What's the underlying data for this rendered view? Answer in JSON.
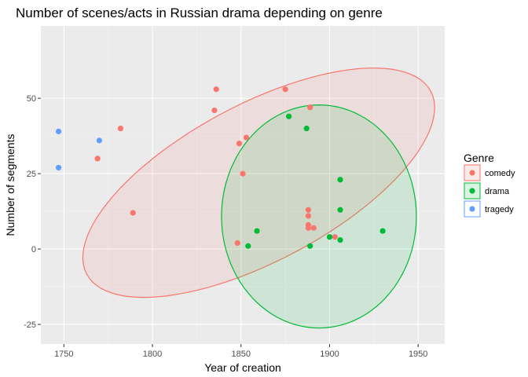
{
  "chart_data": {
    "type": "scatter",
    "title": "Number of scenes/acts in Russian drama depending on genre",
    "xlabel": "Year of creation",
    "ylabel": "Number of segments",
    "xlim": [
      1737,
      1965
    ],
    "ylim": [
      -31.5,
      74
    ],
    "xticks": [
      1750,
      1800,
      1850,
      1900,
      1950
    ],
    "yticks": [
      -25,
      0,
      25,
      50
    ],
    "grid": true,
    "legend": {
      "title": "Genre",
      "placement": "right"
    },
    "series": [
      {
        "name": "comedy",
        "color": "#F8766D",
        "points": [
          [
            1769,
            30
          ],
          [
            1782,
            40
          ],
          [
            1789,
            12
          ],
          [
            1835,
            46
          ],
          [
            1836,
            53
          ],
          [
            1848,
            2
          ],
          [
            1849,
            35
          ],
          [
            1851,
            25
          ],
          [
            1853,
            37
          ],
          [
            1875,
            53
          ],
          [
            1888,
            13
          ],
          [
            1888,
            11
          ],
          [
            1888,
            8
          ],
          [
            1888,
            7
          ],
          [
            1889,
            47
          ],
          [
            1891,
            7
          ],
          [
            1903,
            4
          ]
        ],
        "ellipse": {
          "cx": 1860,
          "cy": 22,
          "rx": 110,
          "ry": 26,
          "angle_deg": -28
        }
      },
      {
        "name": "drama",
        "color": "#00BA38",
        "points": [
          [
            1854,
            1
          ],
          [
            1859,
            6
          ],
          [
            1877,
            44
          ],
          [
            1887,
            40
          ],
          [
            1889,
            1
          ],
          [
            1900,
            4
          ],
          [
            1906,
            23
          ],
          [
            1906,
            13
          ],
          [
            1906,
            3
          ],
          [
            1930,
            6
          ]
        ],
        "ellipse": {
          "cx": 1894,
          "cy": 10.8,
          "rx": 55,
          "ry": 37,
          "angle_deg": 0
        }
      },
      {
        "name": "tragedy",
        "color": "#619CFF",
        "points": [
          [
            1747,
            39
          ],
          [
            1747,
            27
          ],
          [
            1770,
            36
          ]
        ]
      }
    ]
  }
}
